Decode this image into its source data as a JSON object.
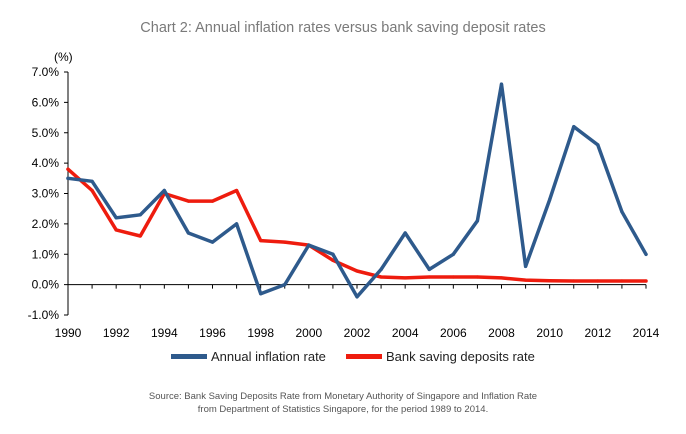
{
  "chart_data": {
    "type": "line",
    "title": "Chart 2: Annual inflation rates versus bank saving deposit rates",
    "ylabel": "(%)",
    "xlabel": "",
    "xlim": [
      1990,
      2014
    ],
    "ylim": [
      -1.0,
      7.0
    ],
    "x_ticks": [
      "1990",
      "1992",
      "1994",
      "1996",
      "1998",
      "2000",
      "2002",
      "2004",
      "2006",
      "2008",
      "2010",
      "2012",
      "2014"
    ],
    "y_ticks": [
      "-1.0%",
      "0.0%",
      "1.0%",
      "2.0%",
      "3.0%",
      "4.0%",
      "5.0%",
      "6.0%",
      "7.0%"
    ],
    "grid": false,
    "legend_position": "bottom",
    "series": [
      {
        "name": "Annual inflation rate",
        "color": "#2e5a8c",
        "x": [
          1990,
          1991,
          1992,
          1993,
          1994,
          1995,
          1996,
          1997,
          1998,
          1999,
          2000,
          2001,
          2002,
          2003,
          2004,
          2005,
          2006,
          2007,
          2008,
          2009,
          2010,
          2011,
          2012,
          2013,
          2014
        ],
        "values": [
          3.5,
          3.4,
          2.2,
          2.3,
          3.1,
          1.7,
          1.4,
          2.0,
          -0.3,
          0.0,
          1.3,
          1.0,
          -0.4,
          0.5,
          1.7,
          0.5,
          1.0,
          2.1,
          6.6,
          0.6,
          2.8,
          5.2,
          4.6,
          2.4,
          1.0
        ]
      },
      {
        "name": "Bank saving deposits rate",
        "color": "#ee1c0e",
        "x": [
          1990,
          1991,
          1992,
          1993,
          1994,
          1995,
          1996,
          1997,
          1998,
          1999,
          2000,
          2001,
          2002,
          2003,
          2004,
          2005,
          2006,
          2007,
          2008,
          2009,
          2010,
          2011,
          2012,
          2013,
          2014
        ],
        "values": [
          3.8,
          3.1,
          1.8,
          1.6,
          3.0,
          2.75,
          2.75,
          3.1,
          1.45,
          1.4,
          1.3,
          0.8,
          0.45,
          0.25,
          0.22,
          0.25,
          0.25,
          0.25,
          0.22,
          0.15,
          0.13,
          0.12,
          0.12,
          0.12,
          0.12
        ]
      }
    ]
  },
  "source": {
    "line1": "Source: Bank Saving Deposits Rate from Monetary Authority of Singapore and Inflation Rate",
    "line2": "from Department of Statistics Singapore, for the period 1989 to 2014."
  }
}
